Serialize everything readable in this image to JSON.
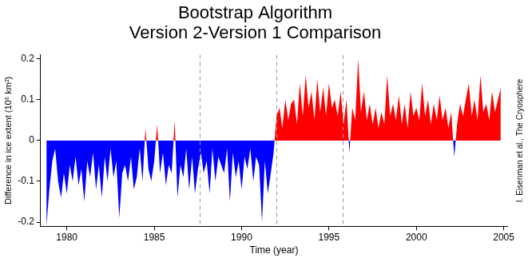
{
  "chart_data": {
    "type": "area",
    "title": [
      "Bootstrap Algorithm",
      "Version 2-Version 1 Comparison"
    ],
    "x_label": "Time (year)",
    "y_label": "Difference in ice extent (10⁶ km²)",
    "annotation": "I. Eisenman et al., The Cryosphere",
    "color": {
      "above": "#ff0000",
      "below": "#0000ff"
    },
    "grid": false,
    "xlim": [
      1978.5,
      2005.2
    ],
    "xticks": [
      1980,
      1985,
      1990,
      1995,
      2000,
      2005
    ],
    "ylim": [
      -0.21,
      0.21
    ],
    "yticks": [
      -0.2,
      -0.1,
      0,
      0.1,
      0.2
    ],
    "vlines": [
      1987.6,
      1992.0,
      1995.8
    ],
    "x": [
      1978.83,
      1979.0,
      1979.17,
      1979.33,
      1979.5,
      1979.67,
      1979.83,
      1980.0,
      1980.17,
      1980.33,
      1980.5,
      1980.67,
      1980.83,
      1981.0,
      1981.17,
      1981.33,
      1981.5,
      1981.67,
      1981.83,
      1982.0,
      1982.17,
      1982.33,
      1982.5,
      1982.67,
      1982.83,
      1983.0,
      1983.17,
      1983.33,
      1983.5,
      1983.67,
      1983.83,
      1984.0,
      1984.17,
      1984.33,
      1984.5,
      1984.67,
      1984.83,
      1985.0,
      1985.17,
      1985.33,
      1985.5,
      1985.67,
      1985.83,
      1986.0,
      1986.17,
      1986.33,
      1986.5,
      1986.67,
      1986.83,
      1987.0,
      1987.17,
      1987.33,
      1987.5,
      1987.67,
      1987.83,
      1988.0,
      1988.17,
      1988.33,
      1988.5,
      1988.67,
      1988.83,
      1989.0,
      1989.17,
      1989.33,
      1989.5,
      1989.67,
      1989.83,
      1990.0,
      1990.17,
      1990.33,
      1990.5,
      1990.67,
      1990.83,
      1991.0,
      1991.17,
      1991.33,
      1991.5,
      1991.67,
      1991.83,
      1992.0,
      1992.17,
      1992.33,
      1992.5,
      1992.67,
      1992.83,
      1993.0,
      1993.17,
      1993.33,
      1993.5,
      1993.67,
      1993.83,
      1994.0,
      1994.17,
      1994.33,
      1994.5,
      1994.67,
      1994.83,
      1995.0,
      1995.17,
      1995.33,
      1995.5,
      1995.67,
      1995.83,
      1996.0,
      1996.17,
      1996.33,
      1996.5,
      1996.67,
      1996.83,
      1997.0,
      1997.17,
      1997.33,
      1997.5,
      1997.67,
      1997.83,
      1998.0,
      1998.17,
      1998.33,
      1998.5,
      1998.67,
      1998.83,
      1999.0,
      1999.17,
      1999.33,
      1999.5,
      1999.67,
      1999.83,
      2000.0,
      2000.17,
      2000.33,
      2000.5,
      2000.67,
      2000.83,
      2001.0,
      2001.17,
      2001.33,
      2001.5,
      2001.67,
      2001.83,
      2002.0,
      2002.17,
      2002.33,
      2002.5,
      2002.67,
      2002.83,
      2003.0,
      2003.17,
      2003.33,
      2003.5,
      2003.67,
      2003.83,
      2004.0,
      2004.17,
      2004.33,
      2004.5,
      2004.67,
      2004.83
    ],
    "values": [
      -0.21,
      -0.12,
      -0.05,
      -0.02,
      -0.1,
      -0.14,
      -0.08,
      -0.13,
      -0.06,
      -0.1,
      -0.04,
      -0.11,
      -0.07,
      -0.15,
      -0.05,
      -0.09,
      -0.03,
      -0.12,
      -0.06,
      -0.14,
      -0.04,
      -0.1,
      -0.02,
      -0.09,
      -0.05,
      -0.19,
      -0.08,
      -0.06,
      -0.1,
      -0.04,
      -0.12,
      -0.09,
      -0.02,
      -0.1,
      0.03,
      -0.07,
      -0.1,
      -0.05,
      0.04,
      -0.08,
      -0.03,
      -0.11,
      -0.06,
      -0.08,
      0.05,
      -0.14,
      -0.06,
      -0.09,
      -0.02,
      -0.12,
      -0.04,
      -0.13,
      -0.07,
      -0.03,
      -0.08,
      -0.05,
      -0.13,
      -0.02,
      -0.1,
      -0.04,
      -0.06,
      -0.08,
      -0.02,
      -0.15,
      -0.03,
      -0.09,
      -0.05,
      -0.12,
      -0.04,
      -0.07,
      -0.02,
      -0.1,
      -0.04,
      -0.06,
      -0.2,
      -0.05,
      -0.13,
      -0.08,
      -0.03,
      0.06,
      0.08,
      0.03,
      0.1,
      0.05,
      0.09,
      0.1,
      0.04,
      0.14,
      0.06,
      0.16,
      0.08,
      0.12,
      0.05,
      0.15,
      0.07,
      0.13,
      0.06,
      0.14,
      0.08,
      0.1,
      0.06,
      0.12,
      0.04,
      0.1,
      -0.03,
      0.08,
      0.05,
      0.2,
      0.07,
      0.12,
      0.05,
      0.09,
      0.04,
      0.08,
      0.03,
      0.07,
      0.04,
      0.16,
      0.06,
      0.09,
      0.05,
      0.11,
      0.04,
      0.09,
      0.03,
      0.12,
      0.06,
      0.08,
      0.05,
      0.14,
      0.06,
      0.1,
      0.04,
      0.09,
      0.05,
      0.11,
      0.05,
      0.08,
      0.03,
      0.07,
      -0.04,
      0.04,
      0.09,
      0.06,
      0.1,
      0.14,
      0.06,
      0.1,
      0.05,
      0.16,
      0.07,
      0.09,
      0.05,
      0.12,
      0.07,
      0.1,
      0.13
    ]
  }
}
